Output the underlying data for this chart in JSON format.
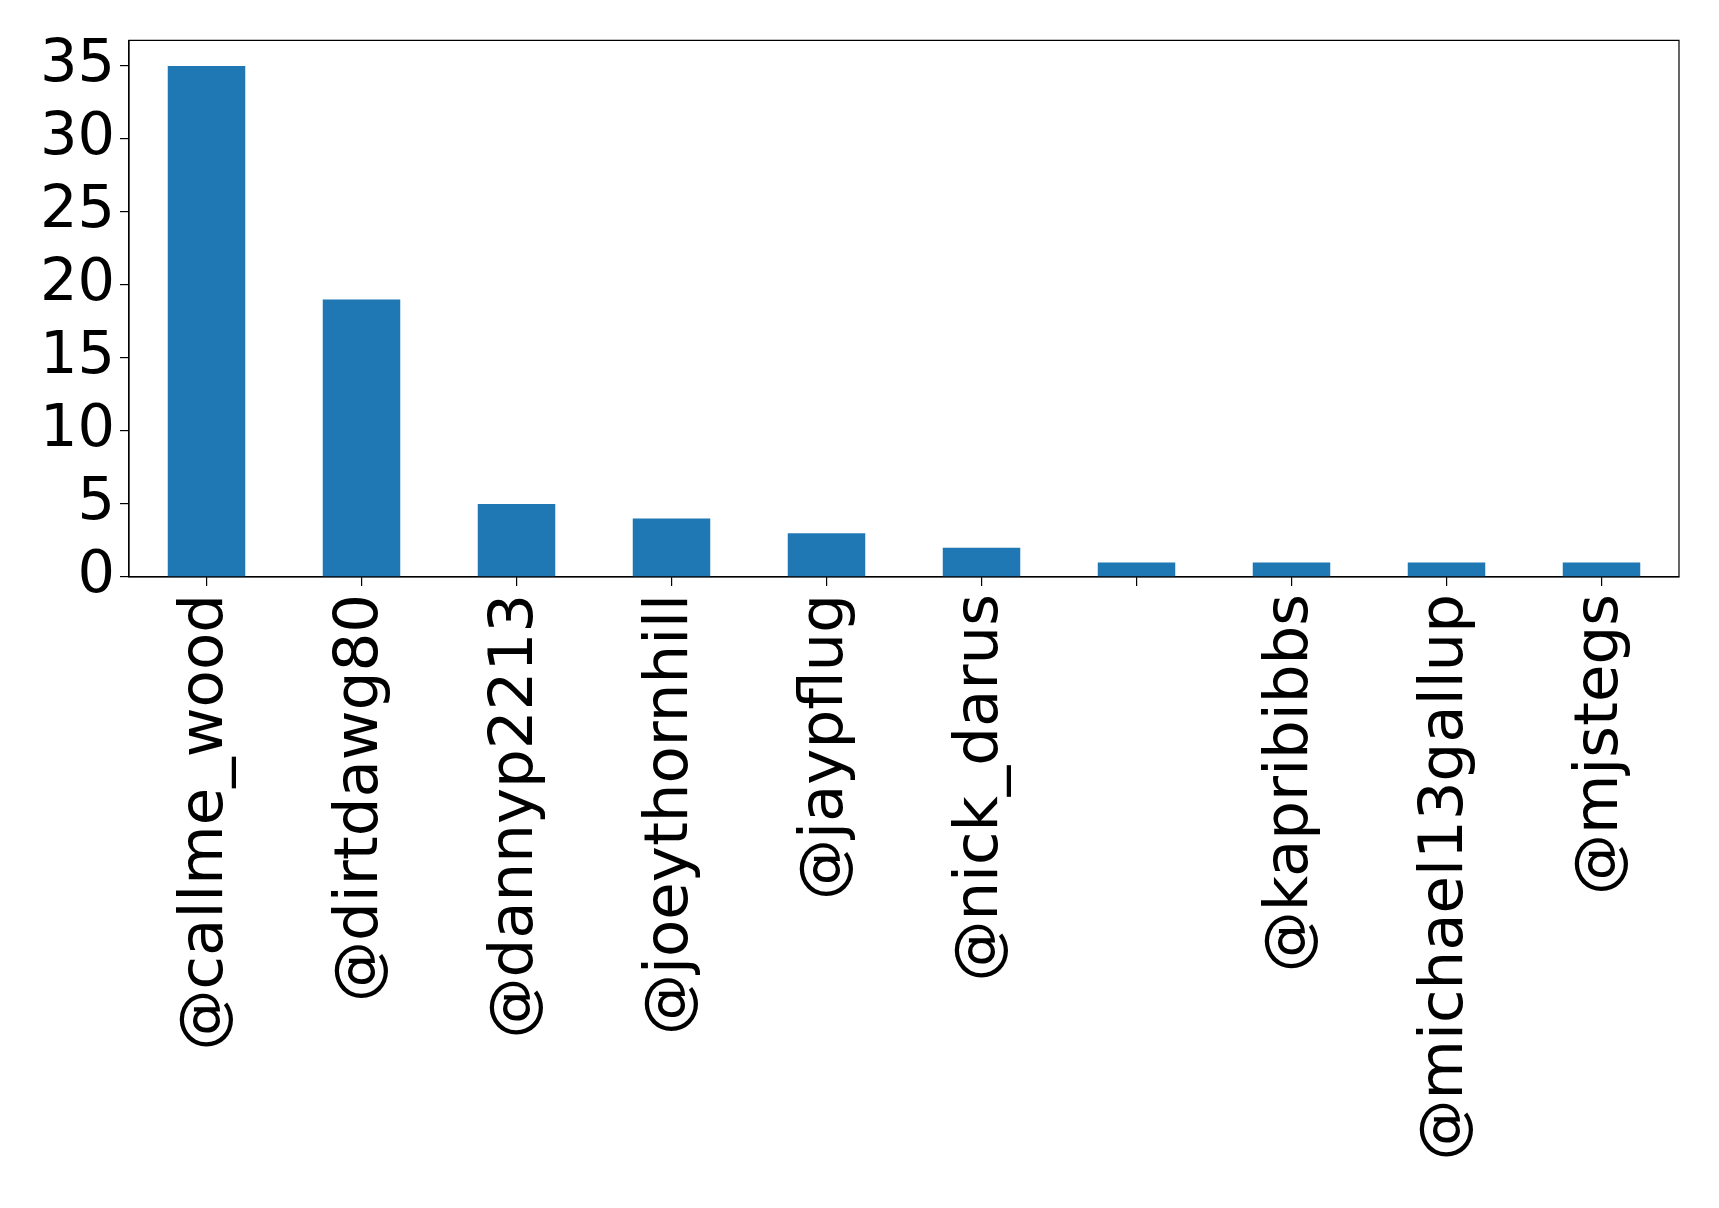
{
  "chart_data": {
    "type": "bar",
    "categories": [
      "@callme_wood",
      "@dirtdawg80",
      "@dannyp2213",
      "@joeythornhill",
      "@jaypflug",
      "@nick_darus",
      null,
      "@kapribibbs",
      "@michael13gallup",
      "@mjstegs"
    ],
    "values": [
      35,
      19,
      5,
      4,
      3,
      2,
      1,
      1,
      1,
      1
    ],
    "color": "#1f77b4",
    "ylim": [
      0,
      36.75
    ],
    "yticks": [
      0,
      5,
      10,
      15,
      20,
      25,
      30,
      35
    ],
    "legend": false
  }
}
